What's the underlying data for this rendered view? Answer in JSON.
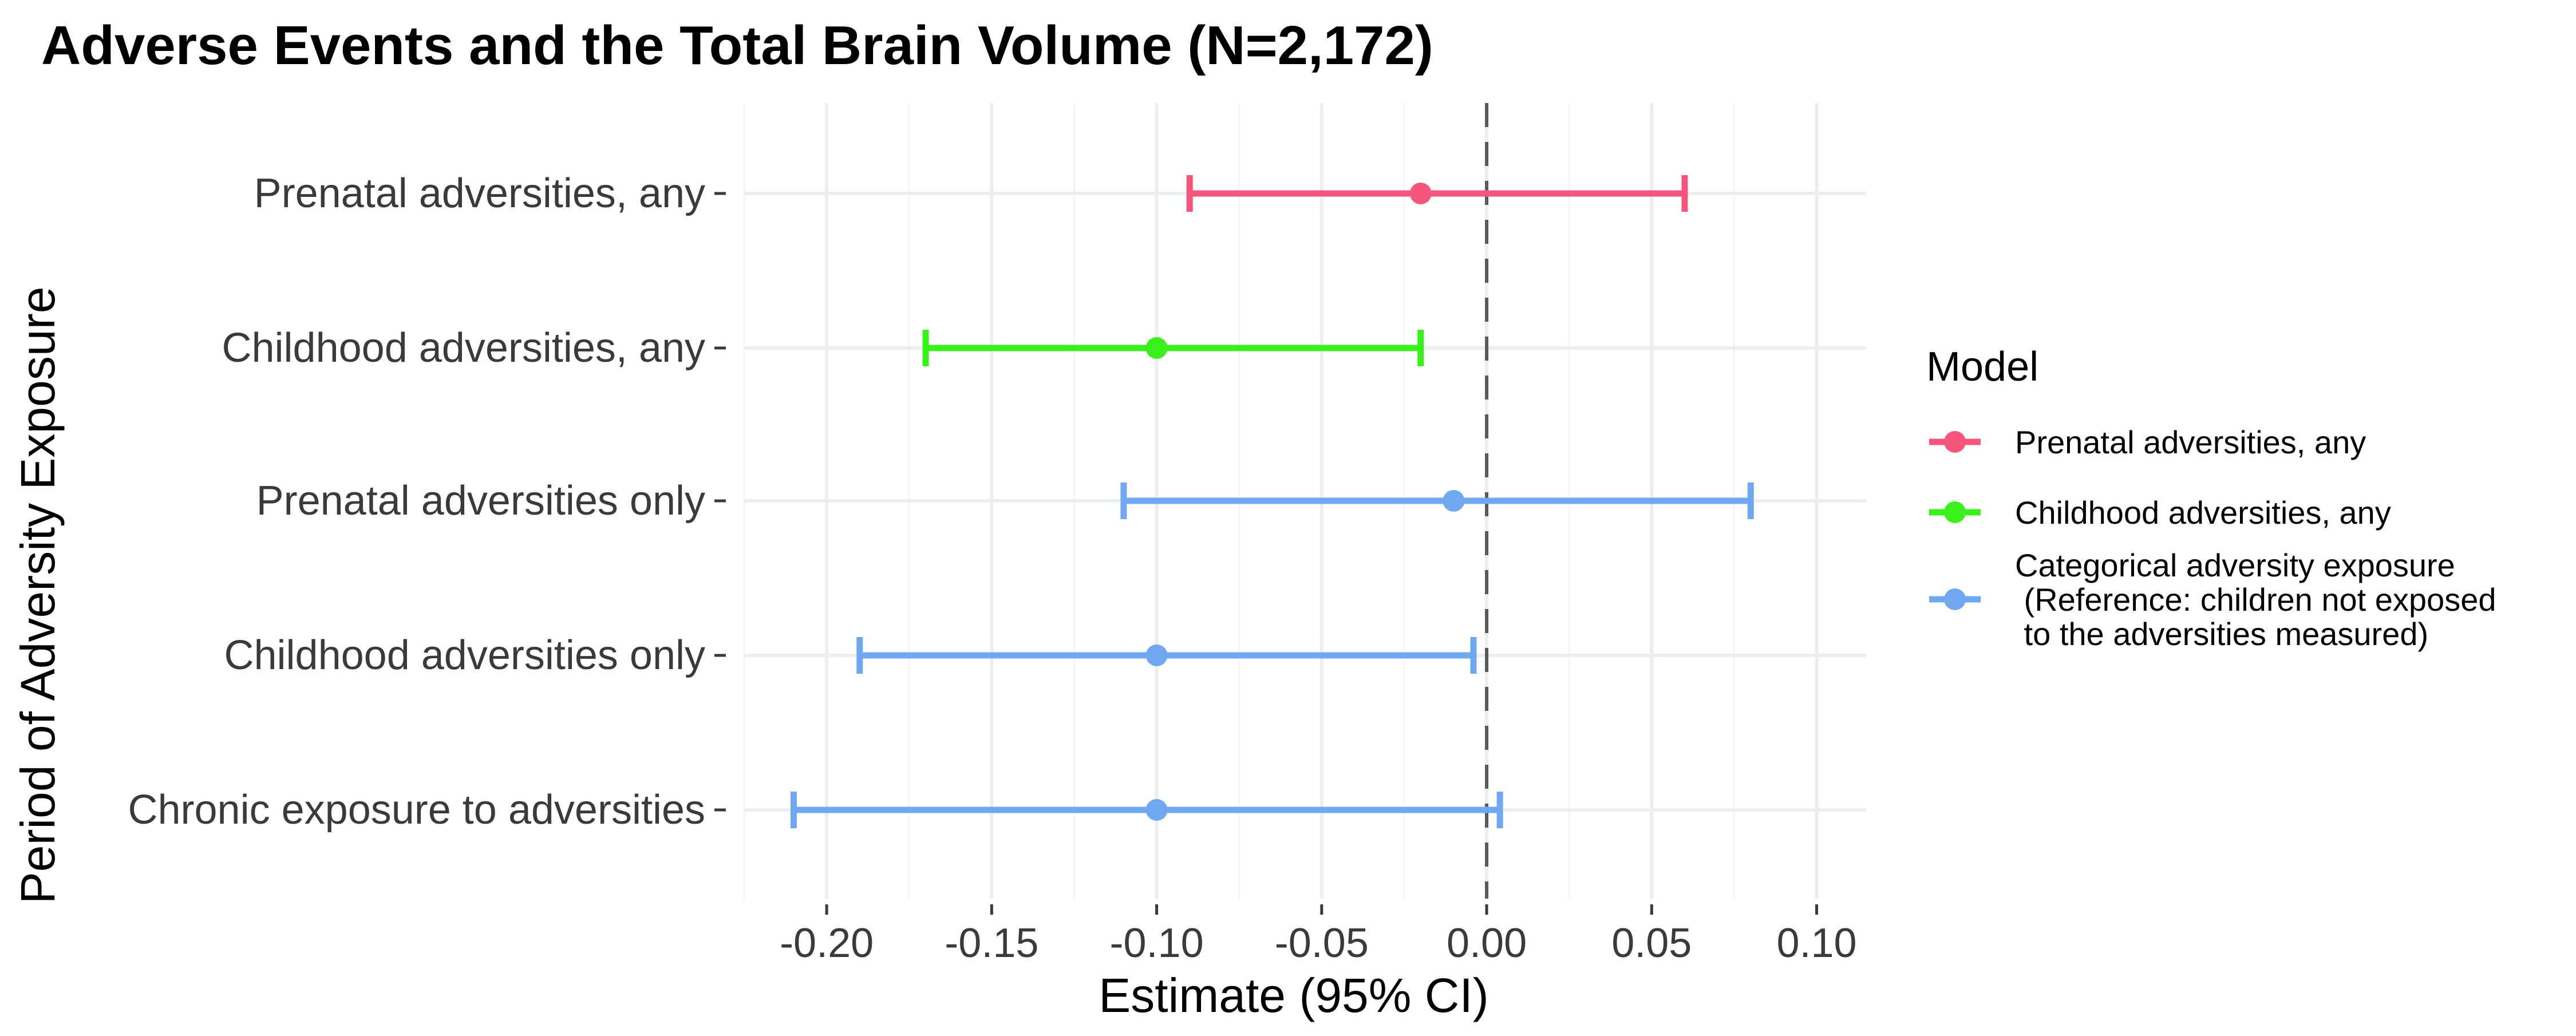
{
  "chart_data": {
    "type": "forest",
    "title": "Adverse Events and the Total Brain Volume (N=2,172)",
    "xlabel": "Estimate (95% CI)",
    "ylabel": "Period of Adversity Exposure",
    "xlim": [
      -0.225,
      0.115
    ],
    "xticks": [
      "-0.20",
      "-0.15",
      "-0.10",
      "-0.05",
      "0.00",
      "0.05",
      "0.10"
    ],
    "xtick_values": [
      -0.2,
      -0.15,
      -0.1,
      -0.05,
      0.0,
      0.05,
      0.1
    ],
    "reference_line": 0,
    "grid": true,
    "legend": {
      "title": "Model",
      "position": "right",
      "entries": [
        {
          "label": "Prenatal adversities, any",
          "color": "#F7567C",
          "lines": [
            "Prenatal adversities, any"
          ]
        },
        {
          "label": "Childhood adversities, any",
          "color": "#39F01A",
          "lines": [
            "Childhood adversities, any"
          ]
        },
        {
          "label": "Categorical adversity exposure (Reference: children not exposed to the adversities measured)",
          "color": "#6FA8F0",
          "lines": [
            "Categorical adversity exposure",
            " (Reference: children not exposed",
            " to the adversities measured)"
          ]
        }
      ]
    },
    "rows": [
      {
        "label": "Prenatal adversities, any",
        "estimate": -0.02,
        "lower": -0.09,
        "upper": 0.06,
        "model": "Prenatal adversities, any"
      },
      {
        "label": "Childhood adversities, any",
        "estimate": -0.1,
        "lower": -0.17,
        "upper": -0.02,
        "model": "Childhood adversities, any"
      },
      {
        "label": "Prenatal adversities only",
        "estimate": -0.01,
        "lower": -0.11,
        "upper": 0.08,
        "model": "Categorical adversity exposure (Reference: children not exposed to the adversities measured)"
      },
      {
        "label": "Childhood adversities only",
        "estimate": -0.1,
        "lower": -0.19,
        "upper": -0.004,
        "model": "Categorical adversity exposure (Reference: children not exposed to the adversities measured)"
      },
      {
        "label": "Chronic exposure to adversities",
        "estimate": -0.1,
        "lower": -0.21,
        "upper": 0.004,
        "model": "Categorical adversity exposure (Reference: children not exposed to the adversities measured)"
      }
    ]
  }
}
